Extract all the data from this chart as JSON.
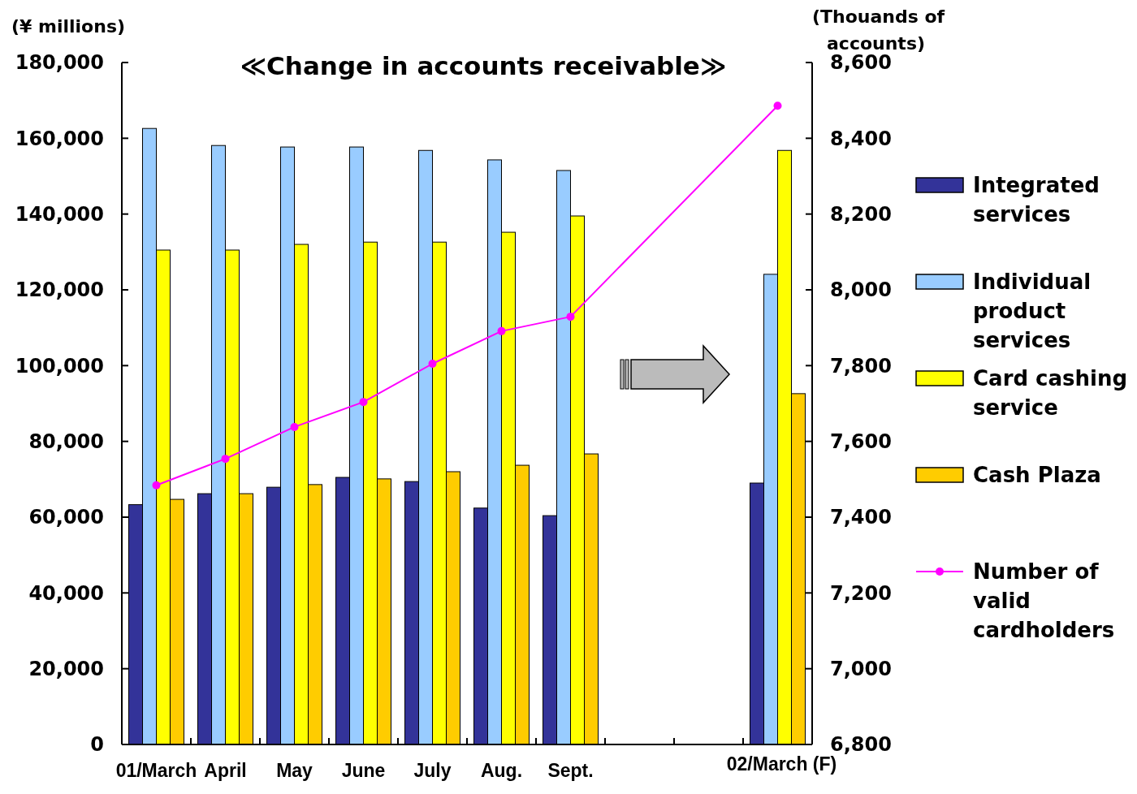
{
  "chart_data": {
    "type": "bar",
    "title": "≪Change in accounts receivable≫",
    "ylabel": "(¥ millions)",
    "y2label": "(Thouands of accounts)",
    "categories": [
      "01/March",
      "April",
      "May",
      "June",
      "July",
      "Aug.",
      "Sept.",
      null,
      null,
      "02/March (F)"
    ],
    "series": [
      {
        "name": "Integrated services",
        "color": "#333399",
        "values": [
          63300,
          66200,
          67900,
          70500,
          69400,
          62400,
          60400,
          null,
          null,
          69000
        ]
      },
      {
        "name": "Individual product services",
        "color": "#99ccff",
        "values": [
          162600,
          158100,
          157700,
          157700,
          156800,
          154300,
          151500,
          null,
          null,
          124100
        ]
      },
      {
        "name": "Card cashing service",
        "color": "#ffff00",
        "values": [
          130500,
          130500,
          132000,
          132600,
          132600,
          135200,
          139500,
          null,
          null,
          156800
        ]
      },
      {
        "name": "Cash Plaza",
        "color": "#ffcc00",
        "values": [
          64700,
          66200,
          68600,
          70100,
          72000,
          73700,
          76700,
          null,
          null,
          92600
        ]
      },
      {
        "name": "Number of valid cardholders",
        "color": "#ff00ff",
        "type": "line",
        "axis": "y2",
        "values": [
          7484,
          7554,
          7638,
          7704,
          7805,
          7891,
          7929,
          null,
          null,
          8486
        ]
      }
    ],
    "ylim": [
      0,
      180000
    ],
    "yticks": [
      0,
      {
        "value": 20000,
        "label": "20,000"
      },
      {
        "value": 40000,
        "label": "40,000"
      },
      {
        "value": 60000,
        "label": "60,000"
      },
      {
        "value": 80000,
        "label": "80,000"
      },
      {
        "value": 100000,
        "label": "100,000"
      },
      {
        "value": 120000,
        "label": "120,000"
      },
      {
        "value": 140000,
        "label": "140,000"
      },
      {
        "value": 160000,
        "label": "160,000"
      },
      {
        "value": 180000,
        "label": "180,000"
      }
    ],
    "y2lim": [
      6800,
      8600
    ],
    "y2ticks": [
      {
        "value": 6800,
        "label": "6,800"
      },
      {
        "value": 7000,
        "label": "7,000"
      },
      {
        "value": 7200,
        "label": "7,200"
      },
      {
        "value": 7400,
        "label": "7,400"
      },
      {
        "value": 7600,
        "label": "7,600"
      },
      {
        "value": 7800,
        "label": "7,800"
      },
      {
        "value": 8000,
        "label": "8,000"
      },
      {
        "value": 8200,
        "label": "8,200"
      },
      {
        "value": 8400,
        "label": "8,400"
      },
      {
        "value": 8600,
        "label": "8,600"
      }
    ],
    "legend": "right",
    "marker": "circle",
    "grid": false
  }
}
